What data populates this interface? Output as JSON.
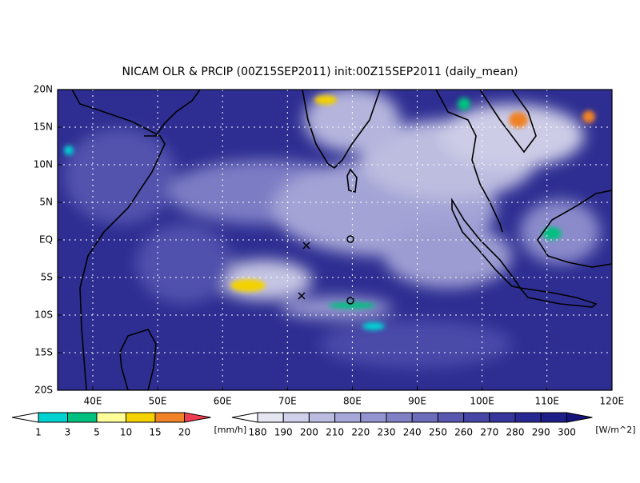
{
  "title": "NICAM OLR & PRCIP (00Z15SEP2011) init:00Z15SEP2011 (daily_mean)",
  "map": {
    "lat_labels": [
      "20N",
      "15N",
      "10N",
      "5N",
      "EQ",
      "5S",
      "10S",
      "15S",
      "20S"
    ],
    "lon_labels": [
      "40E",
      "50E",
      "60E",
      "70E",
      "80E",
      "90E",
      "100E",
      "110E",
      "120E"
    ]
  },
  "colorbars": [
    {
      "labels": [
        "1",
        "3",
        "5",
        "10",
        "15",
        "20"
      ],
      "unit": "[mm/h]",
      "colors": [
        "#ffffff",
        "#00d2d2",
        "#00c080",
        "#ffff9a",
        "#f5d200",
        "#f08228",
        "#f03c50"
      ]
    },
    {
      "labels": [
        "180",
        "190",
        "200",
        "210",
        "220",
        "230",
        "240",
        "250",
        "260",
        "270",
        "280",
        "290",
        "300"
      ],
      "unit": "[W/m^2]",
      "colors": [
        "#ffffff",
        "#e6e6f2",
        "#d0d0ea",
        "#bcbce2",
        "#a8a8da",
        "#9494d0",
        "#8080c6",
        "#6c6cbc",
        "#5858b0",
        "#4646a6",
        "#36369c",
        "#282892",
        "#1e1e88",
        "#14147c"
      ]
    }
  ]
}
